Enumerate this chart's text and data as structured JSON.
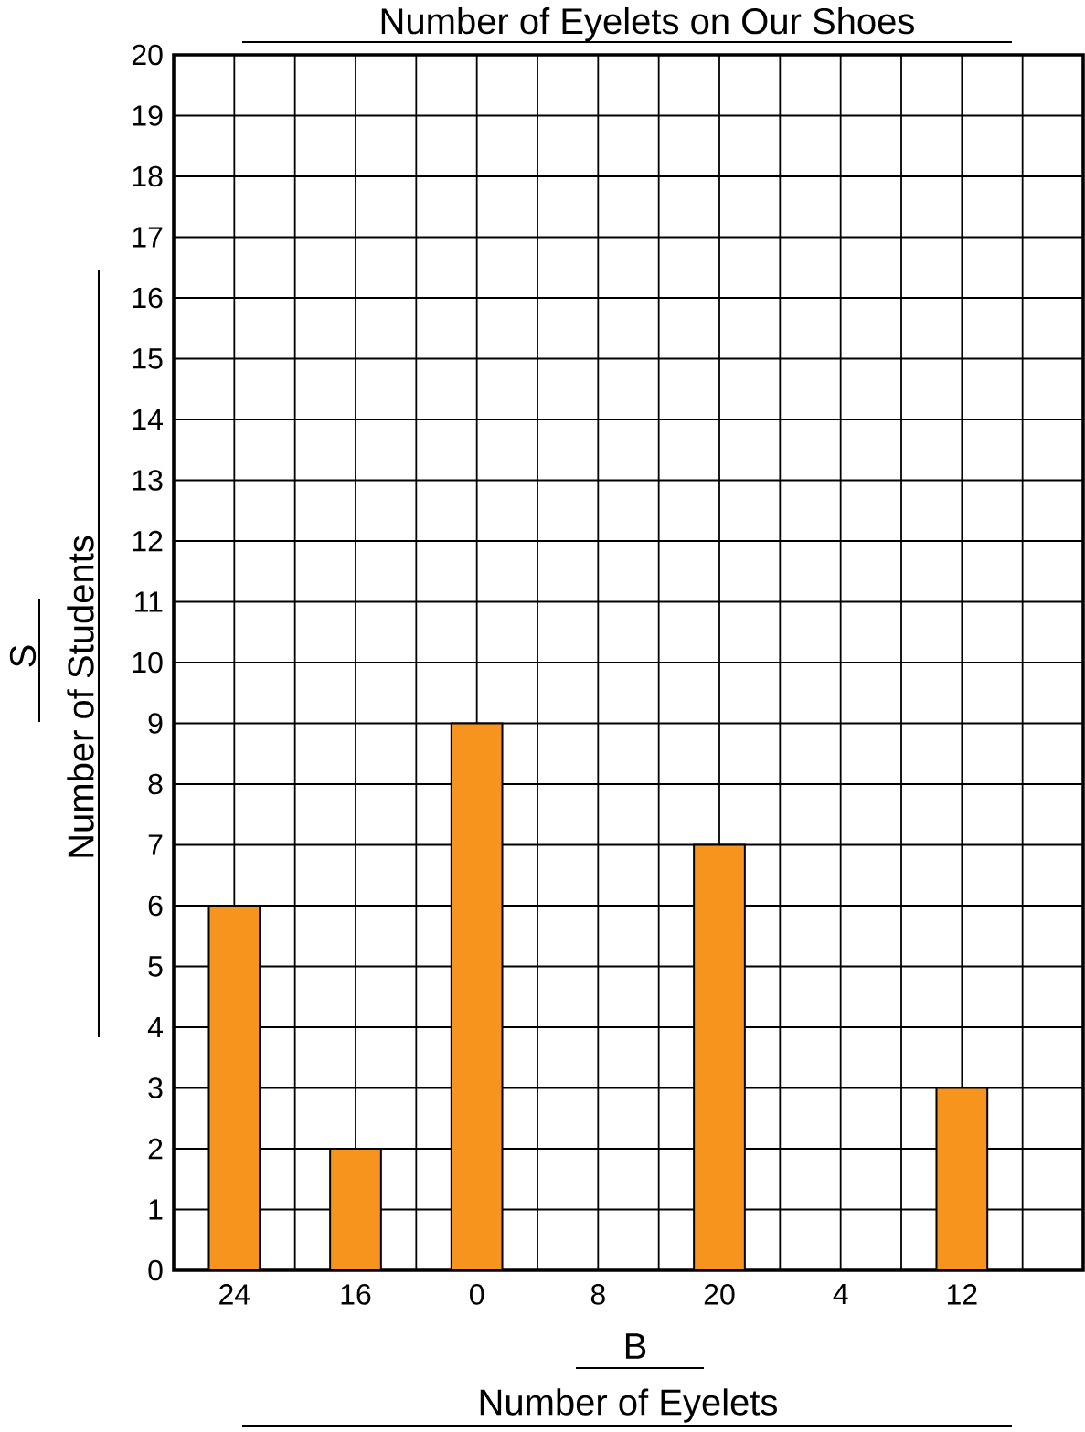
{
  "chart_data": {
    "type": "bar",
    "title": "Number of Eyelets on Our Shoes",
    "xlabel": "Number of Eyelets",
    "ylabel": "Number of Students",
    "annotations": [
      "S",
      "B"
    ],
    "categories": [
      "24",
      "16",
      "0",
      "8",
      "20",
      "4",
      "12"
    ],
    "values": [
      6,
      2,
      9,
      0,
      7,
      0,
      3
    ],
    "color": "#f7941d",
    "ylim": [
      0,
      20
    ],
    "yticks": [
      0,
      1,
      2,
      3,
      4,
      5,
      6,
      7,
      8,
      9,
      10,
      11,
      12,
      13,
      14,
      15,
      16,
      17,
      18,
      19,
      20
    ],
    "grid": true
  }
}
